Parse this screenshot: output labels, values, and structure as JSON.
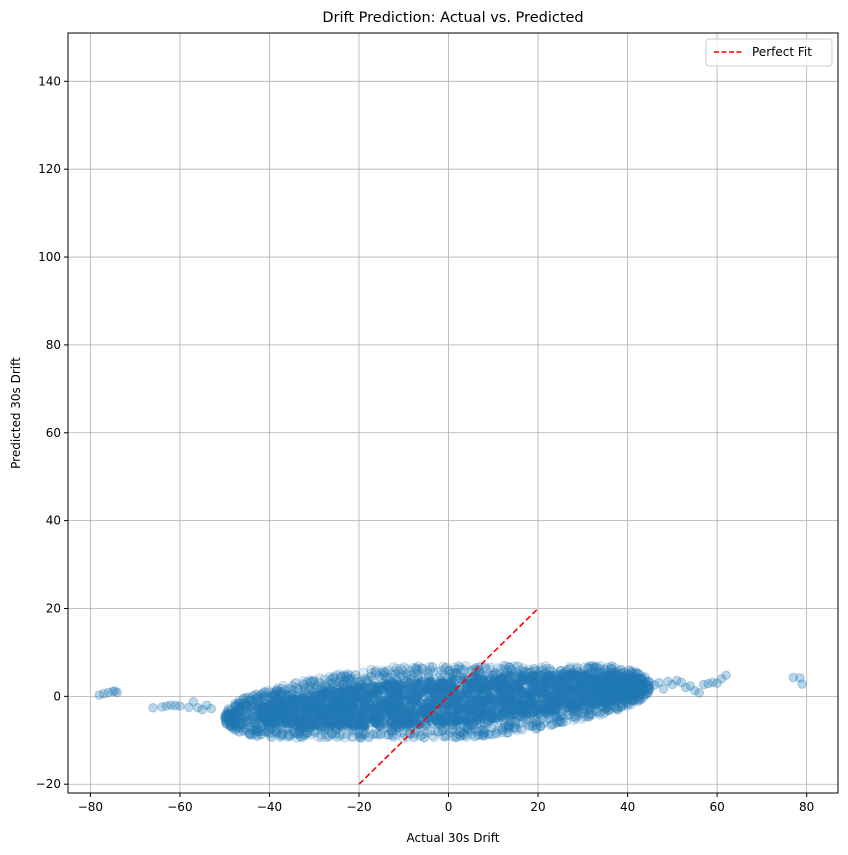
{
  "chart_data": {
    "type": "scatter",
    "title": "Drift Prediction: Actual vs. Predicted",
    "xlabel": "Actual 30s Drift",
    "ylabel": "Predicted 30s Drift",
    "xlim": [
      -85,
      87
    ],
    "ylim": [
      -22,
      151
    ],
    "xticks": [
      -80,
      -60,
      -40,
      -20,
      0,
      20,
      40,
      60,
      80
    ],
    "yticks": [
      -20,
      0,
      20,
      40,
      60,
      80,
      100,
      120,
      140
    ],
    "grid": true,
    "legend": {
      "placement": "top-right",
      "entries": [
        "Perfect Fit"
      ]
    },
    "series": [
      {
        "kind": "scatter",
        "color": "#1f77b4",
        "alpha": 0.15,
        "cloud": {
          "x_range": [
            -50,
            45
          ],
          "y_range": [
            -9.5,
            7
          ],
          "slope": 0.075,
          "center": [
            0,
            -1
          ]
        },
        "outliers": [
          [
            -78,
            0.3
          ],
          [
            -77,
            0.6
          ],
          [
            -76,
            0.9
          ],
          [
            -75,
            1.1
          ],
          [
            -74.5,
            1.2
          ],
          [
            -74,
            0.9
          ],
          [
            -66,
            -2.6
          ],
          [
            -64,
            -2.4
          ],
          [
            -63,
            -2.2
          ],
          [
            -62,
            -2.0
          ],
          [
            -61,
            -2.1
          ],
          [
            -60,
            -2.2
          ],
          [
            -58,
            -2.5
          ],
          [
            -57,
            -1.2
          ],
          [
            -56,
            -2.6
          ],
          [
            -55,
            -3.0
          ],
          [
            -54,
            -2.0
          ],
          [
            -53,
            -2.8
          ],
          [
            46,
            2.6
          ],
          [
            47,
            3.1
          ],
          [
            48,
            1.7
          ],
          [
            49,
            3.4
          ],
          [
            50,
            2.7
          ],
          [
            51,
            3.6
          ],
          [
            52,
            3.2
          ],
          [
            53,
            2.0
          ],
          [
            54,
            2.4
          ],
          [
            55,
            1.3
          ],
          [
            56,
            0.8
          ],
          [
            57,
            2.7
          ],
          [
            58,
            2.9
          ],
          [
            59,
            3.2
          ],
          [
            60,
            3.0
          ],
          [
            61,
            4.0
          ],
          [
            62,
            4.8
          ],
          [
            77,
            4.3
          ],
          [
            78.5,
            4.2
          ],
          [
            79,
            2.8
          ]
        ]
      },
      {
        "kind": "line",
        "name": "Perfect Fit",
        "color": "#ff0000",
        "dash": true,
        "x": [
          -20,
          20
        ],
        "y": [
          -20,
          20
        ]
      }
    ]
  }
}
